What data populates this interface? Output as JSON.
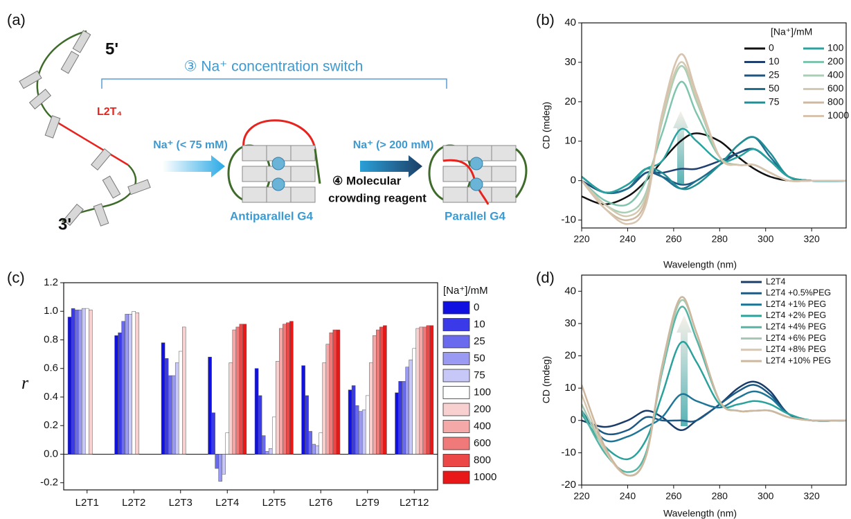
{
  "diagram": {
    "panel_label": "(a)",
    "five_prime": "5'",
    "three_prime": "3'",
    "loop_label": "L2T₄",
    "switch_label": "③ Na⁺ concentration switch",
    "step1_label": "Na⁺ (< 75 mM)",
    "step2_label": "Na⁺ (> 200 mM)",
    "crowding_label_1": "④ Molecular",
    "crowding_label_2": "crowding reagent",
    "antiparallel_label": "Antiparallel G4",
    "parallel_label": "Parallel G4"
  },
  "chart_data": [
    {
      "type": "line",
      "label": "(b)",
      "x_label": "Wavelength (nm)",
      "y_label": "CD (mdeg)",
      "legend_title": "[Na⁺]/mM",
      "x": [
        220,
        230,
        240,
        248,
        255,
        263,
        270,
        280,
        288,
        295,
        302,
        310,
        320,
        335
      ],
      "xlim": [
        220,
        335
      ],
      "xticks": [
        220,
        240,
        260,
        280,
        300,
        320
      ],
      "ylim": [
        -12,
        40
      ],
      "yticks": [
        -10,
        0,
        10,
        20,
        30,
        40
      ],
      "series": [
        {
          "name": "0",
          "color": "#111111",
          "values": [
            -4,
            -6,
            -4,
            0,
            5,
            10,
            12,
            10,
            6,
            3,
            1,
            0,
            0,
            0
          ]
        },
        {
          "name": "10",
          "color": "#1f3f6e",
          "values": [
            0,
            -3,
            -2,
            2,
            2,
            3,
            3,
            5,
            7,
            8,
            5,
            1,
            0,
            0
          ]
        },
        {
          "name": "25",
          "color": "#1d5580",
          "values": [
            1,
            -3,
            -2,
            2,
            1,
            -1,
            0,
            4,
            7,
            8,
            5,
            1,
            0,
            0
          ]
        },
        {
          "name": "50",
          "color": "#1f6f8f",
          "values": [
            1,
            -3,
            -2,
            3,
            1,
            -2,
            0,
            4,
            9,
            11,
            6,
            1,
            0,
            0
          ]
        },
        {
          "name": "75",
          "color": "#1f8f95",
          "values": [
            1,
            -3,
            -1,
            3,
            2,
            -2,
            -1,
            4,
            9,
            11,
            7,
            1,
            0,
            0
          ]
        },
        {
          "name": "100",
          "color": "#2aa3a0",
          "values": [
            1,
            -3,
            -1,
            3,
            5,
            13,
            10,
            5,
            6,
            8,
            5,
            1,
            0,
            0
          ]
        },
        {
          "name": "200",
          "color": "#7fc4ac",
          "values": [
            0,
            -5,
            -6,
            0,
            12,
            25,
            17,
            6,
            4,
            4,
            2,
            0,
            0,
            0
          ]
        },
        {
          "name": "400",
          "color": "#a8cfb4",
          "values": [
            0,
            -6,
            -8,
            -3,
            15,
            29,
            20,
            6,
            4,
            4,
            2,
            0,
            0,
            0
          ]
        },
        {
          "name": "600",
          "color": "#d3c8b0",
          "values": [
            0,
            -6,
            -9,
            -4,
            16,
            30,
            21,
            6,
            4,
            4,
            2,
            0,
            0,
            0
          ]
        },
        {
          "name": "800",
          "color": "#cdb9a0",
          "values": [
            0,
            -7,
            -10,
            -5,
            17,
            32,
            22,
            6,
            4,
            4,
            2,
            0,
            0,
            0
          ]
        },
        {
          "name": "1000",
          "color": "#d8c4ae",
          "values": [
            0,
            -7,
            -11,
            -6,
            17,
            32,
            22,
            6,
            4,
            4,
            2,
            0,
            0,
            0
          ]
        }
      ]
    },
    {
      "type": "bar",
      "label": "(c)",
      "y_label": "r",
      "legend_title": "[Na⁺]/mM",
      "categories": [
        "L2T1",
        "L2T2",
        "L2T3",
        "L2T4",
        "L2T5",
        "L2T6",
        "L2T9",
        "L2T12"
      ],
      "ylim": [
        -0.25,
        1.2
      ],
      "yticks": [
        -0.2,
        {
          "value": 0,
          "label": "0.0"
        },
        0.2,
        0.4,
        0.6,
        0.8,
        {
          "value": 1,
          "label": "1.0"
        },
        1.2
      ],
      "series": [
        {
          "name": "0",
          "color": "#1010e0",
          "values": [
            0.96,
            0.83,
            0.78,
            0.68,
            0.6,
            0.62,
            0.45,
            0.43
          ]
        },
        {
          "name": "10",
          "color": "#3a3ae8",
          "values": [
            1.02,
            0.85,
            0.67,
            0.29,
            0.41,
            0.41,
            0.48,
            0.51
          ]
        },
        {
          "name": "25",
          "color": "#6a6aee",
          "values": [
            1.01,
            0.93,
            0.55,
            -0.1,
            0.13,
            0.16,
            0.34,
            0.51
          ]
        },
        {
          "name": "50",
          "color": "#9a9af2",
          "values": [
            1.01,
            0.98,
            0.55,
            -0.19,
            0.02,
            0.07,
            0.3,
            0.61
          ]
        },
        {
          "name": "75",
          "color": "#c8c8f8",
          "values": [
            1.02,
            0.98,
            0.64,
            -0.14,
            0.04,
            0.06,
            0.31,
            0.66
          ]
        },
        {
          "name": "100",
          "color": "#ffffff",
          "values": [
            1.02,
            1.0,
            0.72,
            0.15,
            0.26,
            0.15,
            0.41,
            0.74
          ]
        },
        {
          "name": "200",
          "color": "#f8d0d0",
          "values": [
            1.01,
            0.99,
            0.89,
            0.64,
            0.65,
            0.64,
            0.64,
            0.88
          ]
        },
        {
          "name": "400",
          "color": "#f4a8a8",
          "values": [
            null,
            null,
            null,
            0.87,
            0.88,
            0.77,
            0.83,
            0.89
          ]
        },
        {
          "name": "600",
          "color": "#f07a7a",
          "values": [
            null,
            null,
            null,
            0.89,
            0.91,
            0.85,
            0.87,
            0.89
          ]
        },
        {
          "name": "800",
          "color": "#ec4848",
          "values": [
            null,
            null,
            null,
            0.91,
            0.92,
            0.87,
            0.89,
            0.9
          ]
        },
        {
          "name": "1000",
          "color": "#e81818",
          "values": [
            null,
            null,
            null,
            0.91,
            0.93,
            0.87,
            0.9,
            0.9
          ]
        }
      ]
    },
    {
      "type": "line",
      "label": "(d)",
      "x_label": "Wavelength (nm)",
      "y_label": "CD (mdeg)",
      "x": [
        220,
        230,
        240,
        248,
        255,
        263,
        270,
        280,
        288,
        295,
        302,
        310,
        320,
        335
      ],
      "xlim": [
        220,
        335
      ],
      "xticks": [
        220,
        240,
        260,
        280,
        300,
        320
      ],
      "ylim": [
        -20,
        45
      ],
      "yticks": [
        -20,
        -10,
        0,
        10,
        20,
        30,
        40
      ],
      "series": [
        {
          "name": "L2T4",
          "color": "#1a3c68",
          "values": [
            0,
            -2,
            0,
            3,
            1,
            -3,
            0,
            5,
            10,
            12,
            9,
            2,
            0,
            0
          ]
        },
        {
          "name": "L2T4 +0.5%PEG",
          "color": "#1c5a84",
          "values": [
            2,
            -4,
            -3,
            1,
            0,
            0,
            0,
            5,
            9,
            11,
            8,
            2,
            0,
            0
          ]
        },
        {
          "name": "L2T4 +1% PEG",
          "color": "#1e7595",
          "values": [
            3,
            -6,
            -5,
            -2,
            1,
            8,
            6,
            4,
            7,
            9,
            7,
            2,
            0,
            0
          ]
        },
        {
          "name": "L2T4 +2% PEG",
          "color": "#2aa19a",
          "values": [
            2,
            -8,
            -12,
            -6,
            8,
            24,
            18,
            5,
            5,
            6,
            5,
            2,
            0,
            0
          ]
        },
        {
          "name": "L2T4 +4% PEG",
          "color": "#55b5a5",
          "values": [
            3,
            -10,
            -16,
            -10,
            15,
            35,
            25,
            6,
            3,
            3,
            3,
            1,
            0,
            0
          ]
        },
        {
          "name": "L2T4 +6% PEG",
          "color": "#a4c9b3",
          "values": [
            5,
            -9,
            -17,
            -11,
            16,
            37,
            27,
            6,
            3,
            3,
            3,
            1,
            0,
            0
          ]
        },
        {
          "name": "L2T4 +8% PEG",
          "color": "#d6c7ae",
          "values": [
            8,
            -9,
            -17,
            -11,
            17,
            38,
            27,
            6,
            3,
            3,
            3,
            1,
            0,
            0
          ]
        },
        {
          "name": "L2T4 +10% PEG",
          "color": "#cdb79e",
          "values": [
            11,
            -8,
            -17,
            -11,
            17,
            38,
            27,
            6,
            3,
            3,
            3,
            1,
            0,
            0
          ]
        }
      ]
    }
  ]
}
